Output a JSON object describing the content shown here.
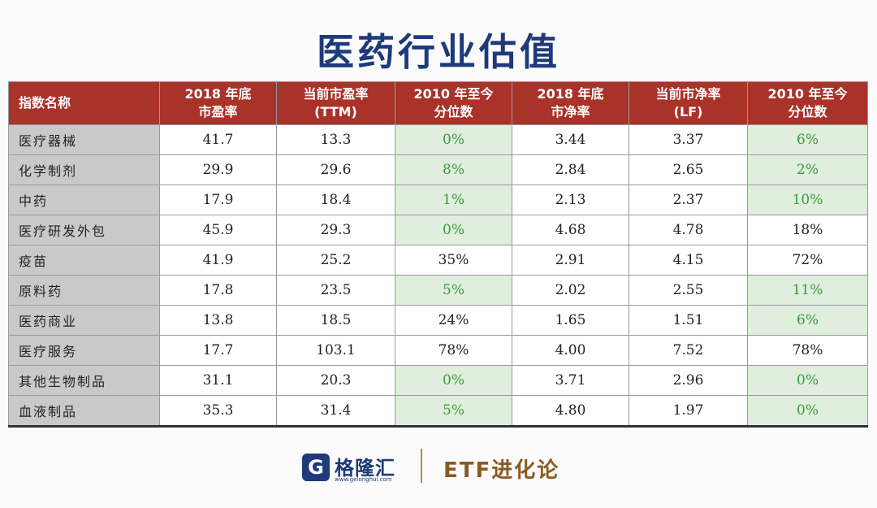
{
  "title": "医药行业估值",
  "table": {
    "headers": [
      {
        "line1": "指数名称",
        "line2": ""
      },
      {
        "line1": "2018 年底",
        "line2": "市盈率"
      },
      {
        "line1": "当前市盈率",
        "line2": "(TTM)"
      },
      {
        "line1": "2010 年至今",
        "line2": "分位数"
      },
      {
        "line1": "2018 年底",
        "line2": "市净率"
      },
      {
        "line1": "当前市净率",
        "line2": "(LF)"
      },
      {
        "line1": "2010 年至今",
        "line2": "分位数"
      }
    ],
    "rows": [
      {
        "name": "医疗器械",
        "pe2018": "41.7",
        "pe_ttm": "13.3",
        "pe_pct": "0%",
        "pb2018": "3.44",
        "pb_lf": "3.37",
        "pb_pct": "6%"
      },
      {
        "name": "化学制剂",
        "pe2018": "29.9",
        "pe_ttm": "29.6",
        "pe_pct": "8%",
        "pb2018": "2.84",
        "pb_lf": "2.65",
        "pb_pct": "2%"
      },
      {
        "name": "中药",
        "pe2018": "17.9",
        "pe_ttm": "18.4",
        "pe_pct": "1%",
        "pb2018": "2.13",
        "pb_lf": "2.37",
        "pb_pct": "10%"
      },
      {
        "name": "医疗研发外包",
        "pe2018": "45.9",
        "pe_ttm": "29.3",
        "pe_pct": "0%",
        "pb2018": "4.68",
        "pb_lf": "4.78",
        "pb_pct": "18%"
      },
      {
        "name": "疫苗",
        "pe2018": "41.9",
        "pe_ttm": "25.2",
        "pe_pct": "35%",
        "pb2018": "2.91",
        "pb_lf": "4.15",
        "pb_pct": "72%"
      },
      {
        "name": "原料药",
        "pe2018": "17.8",
        "pe_ttm": "23.5",
        "pe_pct": "5%",
        "pb2018": "2.02",
        "pb_lf": "2.55",
        "pb_pct": "11%"
      },
      {
        "name": "医药商业",
        "pe2018": "13.8",
        "pe_ttm": "18.5",
        "pe_pct": "24%",
        "pb2018": "1.65",
        "pb_lf": "1.51",
        "pb_pct": "6%"
      },
      {
        "name": "医疗服务",
        "pe2018": "17.7",
        "pe_ttm": "103.1",
        "pe_pct": "78%",
        "pb2018": "4.00",
        "pb_lf": "7.52",
        "pb_pct": "78%"
      },
      {
        "name": "其他生物制品",
        "pe2018": "31.1",
        "pe_ttm": "20.3",
        "pe_pct": "0%",
        "pb2018": "3.71",
        "pb_lf": "2.96",
        "pb_pct": "0%"
      },
      {
        "name": "血液制品",
        "pe2018": "35.3",
        "pe_ttm": "31.4",
        "pe_pct": "5%",
        "pb2018": "4.80",
        "pb_lf": "1.97",
        "pb_pct": "0%"
      }
    ]
  },
  "footer": {
    "logo_mark": "G",
    "logo_name": "格隆汇",
    "logo_url": "www.gelonghui.com",
    "channel_name": "ETF进化论"
  },
  "colors": {
    "header_bg": "#a93229",
    "title_color": "#1f3a7a",
    "highlight_bg": "#dfeedd",
    "highlight_text": "#3c9a3c",
    "name_col_bg": "#c9c9c9"
  }
}
